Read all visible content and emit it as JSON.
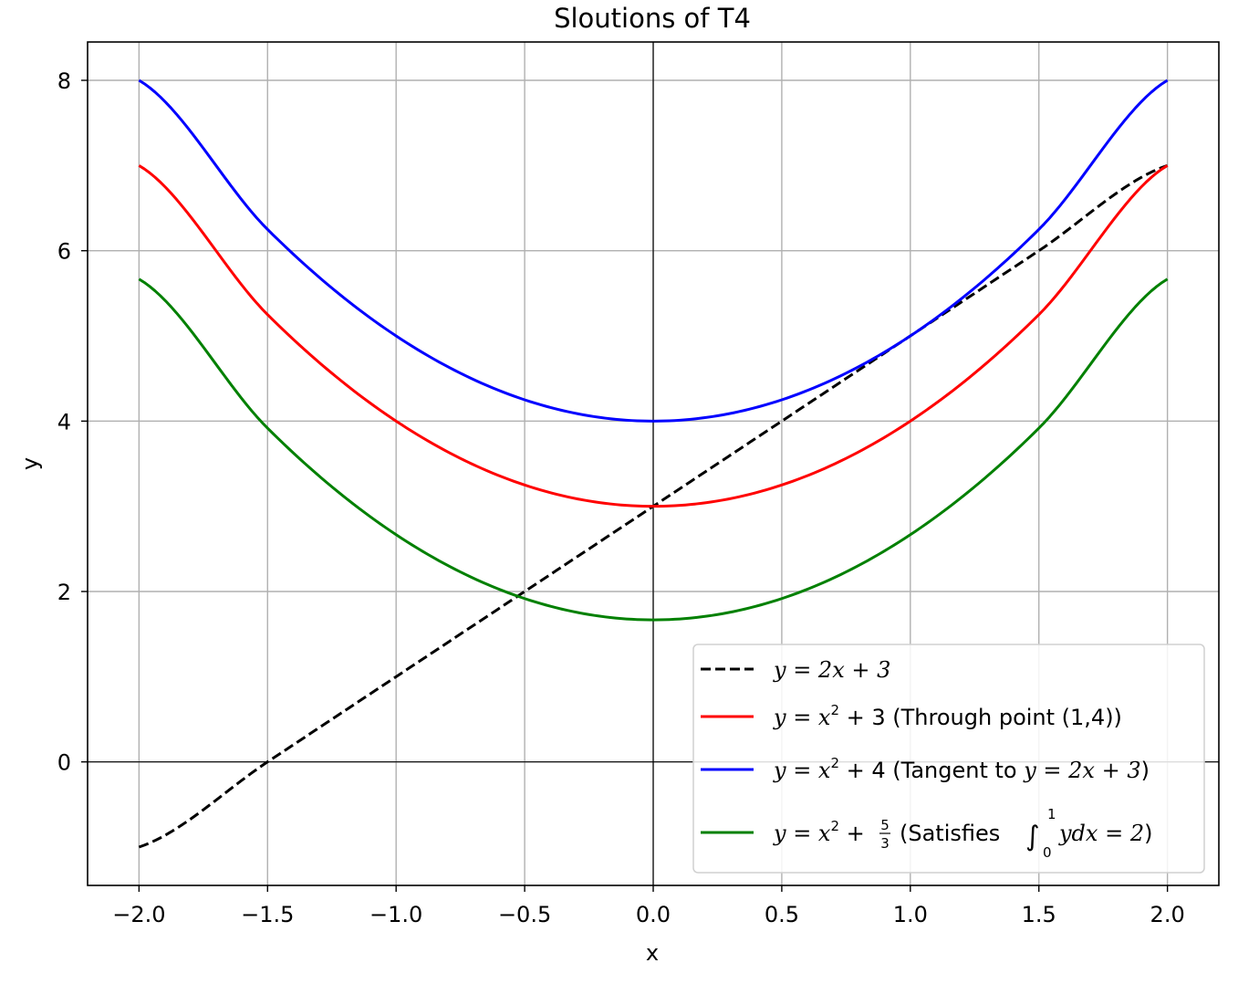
{
  "chart_data": {
    "type": "line",
    "title": "Sloutions of T4",
    "xlabel": "x",
    "ylabel": "y",
    "xlim": [
      -2.2,
      2.2
    ],
    "ylim": [
      -1.45,
      8.45
    ],
    "xticks": [
      -2.0,
      -1.5,
      -1.0,
      -0.5,
      0.0,
      0.5,
      1.0,
      1.5,
      2.0
    ],
    "xtick_labels": [
      "−2.0",
      "−1.5",
      "−1.0",
      "−0.5",
      "0.0",
      "0.5",
      "1.0",
      "1.5",
      "2.0"
    ],
    "yticks": [
      0,
      2,
      4,
      6,
      8
    ],
    "ytick_labels": [
      "0",
      "2",
      "4",
      "6",
      "8"
    ],
    "grid": true,
    "legend_position": "lower-right",
    "x_range": [
      -2.0,
      2.0
    ],
    "series": [
      {
        "name": "y = 2x + 3",
        "style": "dashed",
        "color": "#000000",
        "x": [
          -2.0,
          -1.5,
          -1.0,
          -0.5,
          0.0,
          0.5,
          1.0,
          1.5,
          2.0
        ],
        "y": [
          -1.0,
          0.0,
          1.0,
          2.0,
          3.0,
          4.0,
          5.0,
          6.0,
          7.0
        ]
      },
      {
        "name": "y = x² + 3 (Through point (1,4))",
        "style": "solid",
        "color": "#ff0000",
        "x": [
          -2.0,
          -1.5,
          -1.0,
          -0.5,
          0.0,
          0.5,
          1.0,
          1.5,
          2.0
        ],
        "y": [
          7.0,
          5.25,
          4.0,
          3.25,
          3.0,
          3.25,
          4.0,
          5.25,
          7.0
        ]
      },
      {
        "name": "y = x² + 4 (Tangent to y = 2x + 3)",
        "style": "solid",
        "color": "#0000ff",
        "x": [
          -2.0,
          -1.5,
          -1.0,
          -0.5,
          0.0,
          0.5,
          1.0,
          1.5,
          2.0
        ],
        "y": [
          8.0,
          6.25,
          5.0,
          4.25,
          4.0,
          4.25,
          5.0,
          6.25,
          8.0
        ]
      },
      {
        "name": "y = x² + 5/3 (Satisfies ∫₀¹ y dx = 2)",
        "style": "solid",
        "color": "#008000",
        "x": [
          -2.0,
          -1.5,
          -1.0,
          -0.5,
          0.0,
          0.5,
          1.0,
          1.5,
          2.0
        ],
        "y": [
          5.667,
          3.917,
          2.667,
          1.917,
          1.667,
          1.917,
          2.667,
          3.917,
          5.667
        ]
      }
    ],
    "legend": {
      "items": [
        {
          "pre": "",
          "eq": "y = 2x + 3",
          "post": ""
        },
        {
          "eq_a": "y = x",
          "sup": "2",
          "eq_b": " + 3",
          "post": " (Through point (1,4))"
        },
        {
          "eq_a": "y = x",
          "sup": "2",
          "eq_b": " + 4",
          "post_a": " (Tangent to ",
          "post_math": "y = 2x + 3",
          "post_b": ")"
        },
        {
          "eq_a": "y = x",
          "sup": "2",
          "eq_b": " + ",
          "frac_num": "5",
          "frac_den": "3",
          "post_a": " (Satisfies ",
          "integral": "∫",
          "int_upper": "1",
          "int_lower": "0",
          "post_math": "ydx = 2",
          "post_b": ")"
        }
      ]
    }
  }
}
